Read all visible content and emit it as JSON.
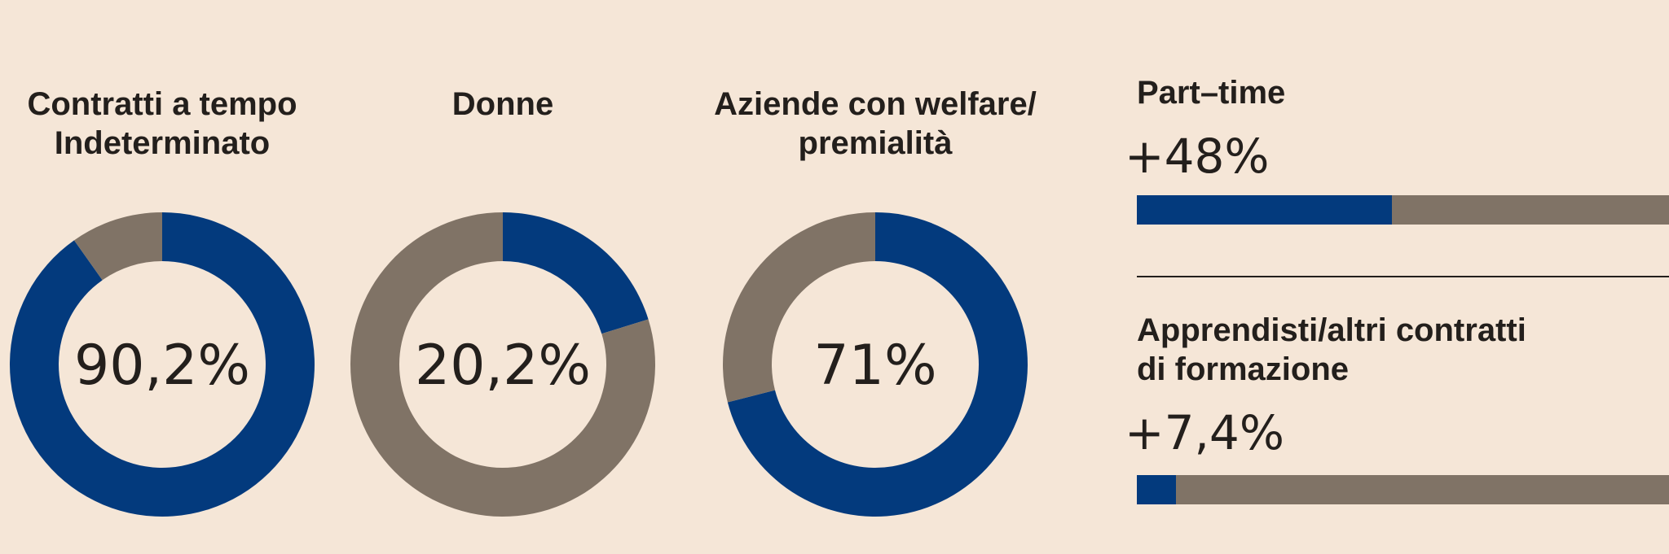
{
  "colors": {
    "primary": "#033a7d",
    "remainder": "#807366",
    "background": "#f5e6d7"
  },
  "chart_data": [
    {
      "type": "pie",
      "variant": "donut",
      "title_lines": [
        "Contratti a tempo",
        "Indeterminato"
      ],
      "value": 90.2,
      "label": "90,2%"
    },
    {
      "type": "pie",
      "variant": "donut",
      "title_lines": [
        "Donne"
      ],
      "value": 20.2,
      "label": "20,2%"
    },
    {
      "type": "pie",
      "variant": "donut",
      "title_lines": [
        "Aziende con welfare/",
        "premialità"
      ],
      "value": 71,
      "label": "71%"
    },
    {
      "type": "bar",
      "orientation": "horizontal",
      "title_lines": [
        "Part–time"
      ],
      "value": 48,
      "label": "+48%"
    },
    {
      "type": "bar",
      "orientation": "horizontal",
      "title_lines": [
        "Apprendisti/altri contratti",
        "di formazione"
      ],
      "value": 7.4,
      "label": "+7,4%"
    }
  ]
}
